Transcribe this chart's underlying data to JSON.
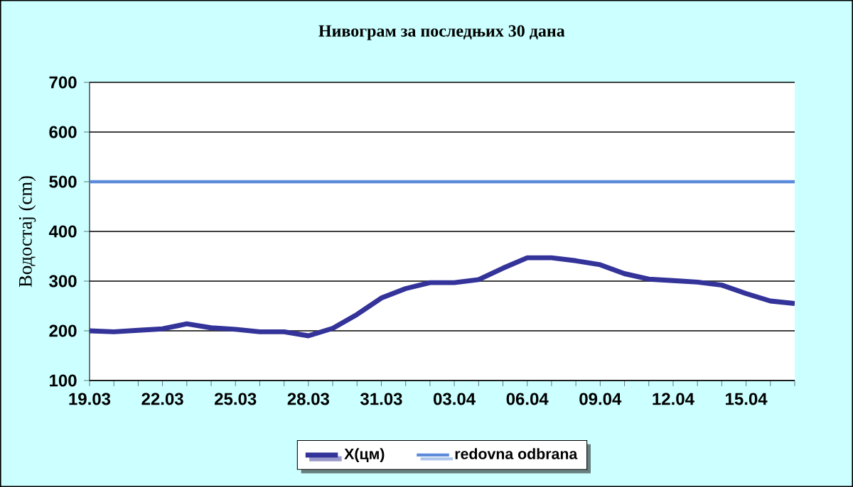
{
  "chart_data": {
    "type": "line",
    "title": "Нивограм за последњих 30 дана",
    "ylabel": "Водостај (cm)",
    "categories": [
      "19.03",
      null,
      null,
      "22.03",
      null,
      null,
      "25.03",
      null,
      null,
      "28.03",
      null,
      null,
      "31.03",
      null,
      null,
      "03.04",
      null,
      null,
      "06.04",
      null,
      null,
      "09.04",
      null,
      null,
      "12.04",
      null,
      null,
      "15.04",
      null,
      null
    ],
    "series": [
      {
        "name": "X(цм)",
        "color": "#333399",
        "values": [
          200,
          198,
          201,
          204,
          214,
          206,
          203,
          198,
          198,
          190,
          205,
          233,
          266,
          285,
          297,
          297,
          303,
          326,
          347,
          347,
          341,
          333,
          315,
          304,
          301,
          298,
          292,
          275,
          260,
          255
        ]
      }
    ],
    "ref_lines": [
      {
        "axis": "y",
        "value": 500,
        "label": "redovna odbrana",
        "color": "#5b8bd9"
      }
    ],
    "ylim": [
      100,
      700
    ],
    "yticks": [
      100,
      200,
      300,
      400,
      500,
      600,
      700
    ],
    "grid": "y",
    "legend": "bottom",
    "marker": "none",
    "line_style": "solid"
  }
}
